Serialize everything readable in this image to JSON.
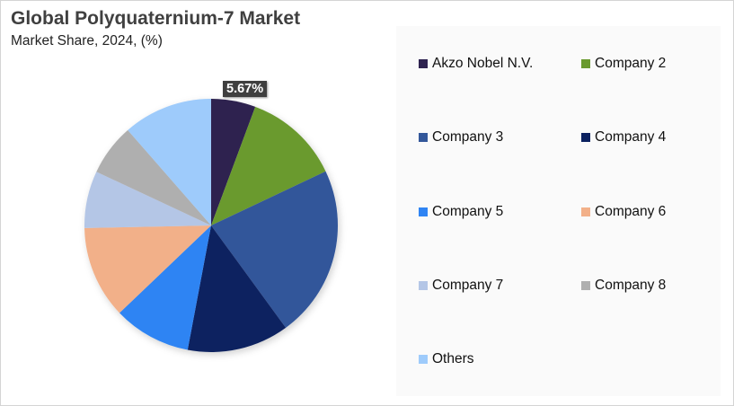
{
  "header": {
    "title": "Global Polyquaternium-7  Market",
    "subtitle": "Market Share, 2024, (%)"
  },
  "data_label": "5.67%",
  "chart_data": {
    "type": "pie",
    "title": "Global Polyquaternium-7 Market",
    "subtitle": "Market Share, 2024, (%)",
    "categories": [
      "Akzo Nobel N.V.",
      "Company 2",
      "Company 3",
      "Company 4",
      "Company 5",
      "Company 6",
      "Company 7",
      "Company 8",
      "Others"
    ],
    "values": [
      5.67,
      12.3,
      22.0,
      13.0,
      9.9,
      11.8,
      7.3,
      6.6,
      11.43
    ],
    "colors": [
      "#2e2350",
      "#6a9a2f",
      "#33579a",
      "#0b2160",
      "#2f84f3",
      "#f2b089",
      "#b4c6e6",
      "#afafaf",
      "#9ecbfb"
    ],
    "annotations": [
      "5.67%"
    ],
    "legend_position": "right",
    "start_angle": "12 o'clock, clockwise"
  },
  "legend": {
    "items": [
      {
        "label": "Akzo Nobel N.V.",
        "color": "#2e2350"
      },
      {
        "label": "Company 2",
        "color": "#6a9a2f"
      },
      {
        "label": "Company 3",
        "color": "#33579a"
      },
      {
        "label": "Company 4",
        "color": "#0b2160"
      },
      {
        "label": "Company 5",
        "color": "#2f84f3"
      },
      {
        "label": "Company 6",
        "color": "#f2b089"
      },
      {
        "label": "Company 7",
        "color": "#b4c6e6"
      },
      {
        "label": "Company 8",
        "color": "#afafaf"
      },
      {
        "label": "Others",
        "color": "#9ecbfb"
      }
    ]
  }
}
